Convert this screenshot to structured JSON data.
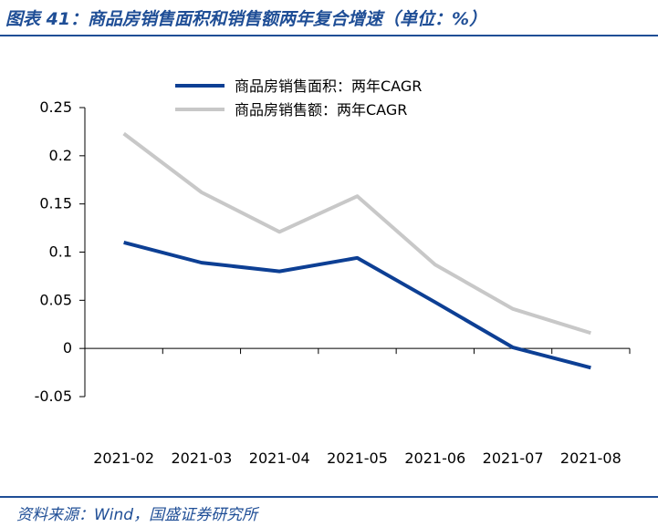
{
  "header": {
    "title": "图表 41：商品房销售面积和销售额两年复合增速（单位：%）"
  },
  "footer": {
    "source": "资料来源：Wind，国盛证券研究所"
  },
  "colors": {
    "accent": "#1f4e96",
    "series_area": "#0d3f94",
    "series_sales": "#c8c8c8"
  },
  "chart_data": {
    "type": "line",
    "title": "",
    "xlabel": "",
    "ylabel": "",
    "categories": [
      "2021-02",
      "2021-03",
      "2021-04",
      "2021-05",
      "2021-06",
      "2021-07",
      "2021-08"
    ],
    "ylim": [
      -0.05,
      0.25
    ],
    "yticks": [
      -0.05,
      0,
      0.05,
      0.1,
      0.15,
      0.2,
      0.25
    ],
    "ytick_labels": [
      "-0.05",
      "0",
      "0.05",
      "0.1",
      "0.15",
      "0.2",
      "0.25"
    ],
    "grid": false,
    "legend_position": "top-center",
    "series": [
      {
        "name": "商品房销售面积：两年CAGR",
        "color": "#0d3f94",
        "values": [
          0.11,
          0.089,
          0.08,
          0.094,
          0.048,
          0.001,
          -0.02
        ]
      },
      {
        "name": "商品房销售额：两年CAGR",
        "color": "#c8c8c8",
        "values": [
          0.223,
          0.162,
          0.121,
          0.158,
          0.087,
          0.041,
          0.016
        ]
      }
    ]
  }
}
